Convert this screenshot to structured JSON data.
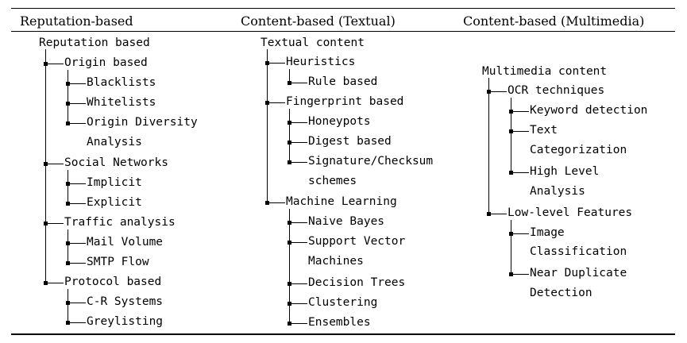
{
  "headers": {
    "reputation": "Reputation-based",
    "textual": "Content-based (Textual)",
    "multimedia": "Content-based (Multimedia)"
  },
  "reputation": {
    "root": "Reputation based",
    "origin": "Origin based",
    "blacklists": "Blacklists",
    "whitelists": "Whitelists",
    "origin_diversity_1": "Origin Diversity",
    "origin_diversity_2": "Analysis",
    "social": "Social Networks",
    "implicit": "Implicit",
    "explicit": "Explicit",
    "traffic": "Traffic analysis",
    "mail_volume": "Mail Volume",
    "smtp_flow": "SMTP Flow",
    "protocol": "Protocol based",
    "cr_systems": "C-R Systems",
    "greylisting": "Greylisting"
  },
  "textual": {
    "root": "Textual content",
    "heuristics": "Heuristics",
    "rule_based": "Rule based",
    "fingerprint": "Fingerprint based",
    "honeypots": "Honeypots",
    "digest": "Digest based",
    "signature_1": "Signature/Checksum",
    "signature_2": "schemes",
    "ml": "Machine Learning",
    "naive_bayes": "Naive Bayes",
    "svm_1": "Support Vector",
    "svm_2": "Machines",
    "decision_trees": "Decision Trees",
    "clustering": "Clustering",
    "ensembles": "Ensembles"
  },
  "multimedia": {
    "root": "Multimedia content",
    "ocr": "OCR techniques",
    "keyword": "Keyword detection",
    "text_cat_1": "Text",
    "text_cat_2": "Categorization",
    "high_level_1": "High Level",
    "high_level_2": "Analysis",
    "low_level": "Low-level Features",
    "image_class_1": "Image",
    "image_class_2": "Classification",
    "near_dup_1": "Near Duplicate",
    "near_dup_2": "Detection"
  }
}
